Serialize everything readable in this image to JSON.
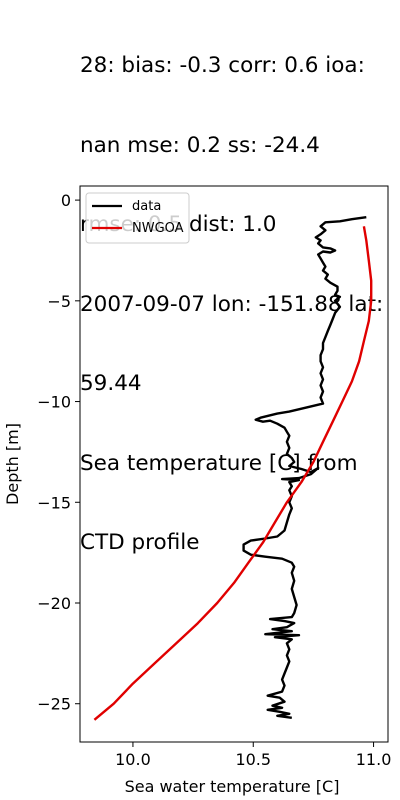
{
  "chart_data": {
    "type": "line",
    "title_lines": [
      "28: bias: -0.3  corr: 0.6  ioa:",
      "nan  mse: 0.2  ss: -24.4",
      "rmse: 0.5  dist: 1.0",
      "2007-09-07 lon: -151.88 lat:",
      "59.44",
      "Sea temperature [C] from",
      "CTD profile"
    ],
    "xlabel": "Sea water temperature [C]",
    "ylabel": "Depth [m]",
    "xlim": [
      9.78,
      11.06
    ],
    "ylim": [
      -26.9,
      0.7
    ],
    "xticks": [
      10.0,
      10.5,
      11.0
    ],
    "xtick_labels": [
      "10.0",
      "10.5",
      "11.0"
    ],
    "yticks": [
      0,
      -5,
      -10,
      -15,
      -20,
      -25
    ],
    "ytick_labels": [
      "0",
      "−5",
      "−10",
      "−15",
      "−20",
      "−25"
    ],
    "legend": {
      "position": "top-left",
      "entries": [
        "data",
        "NWGOA"
      ]
    },
    "grid": false,
    "series": [
      {
        "name": "data",
        "color": "#000000",
        "points": [
          [
            10.97,
            -0.85
          ],
          [
            10.91,
            -0.95
          ],
          [
            10.86,
            -1.05
          ],
          [
            10.8,
            -1.1
          ],
          [
            10.78,
            -1.3
          ],
          [
            10.8,
            -1.5
          ],
          [
            10.78,
            -1.7
          ],
          [
            10.76,
            -1.85
          ],
          [
            10.78,
            -2.0
          ],
          [
            10.77,
            -2.15
          ],
          [
            10.79,
            -2.35
          ],
          [
            10.82,
            -2.4
          ],
          [
            10.84,
            -2.5
          ],
          [
            10.82,
            -2.6
          ],
          [
            10.79,
            -2.55
          ],
          [
            10.77,
            -2.7
          ],
          [
            10.78,
            -2.9
          ],
          [
            10.79,
            -3.1
          ],
          [
            10.8,
            -3.3
          ],
          [
            10.79,
            -3.5
          ],
          [
            10.81,
            -3.7
          ],
          [
            10.8,
            -3.9
          ],
          [
            10.82,
            -4.1
          ],
          [
            10.85,
            -4.3
          ],
          [
            10.85,
            -4.5
          ],
          [
            10.84,
            -4.7
          ],
          [
            10.86,
            -4.8
          ],
          [
            10.84,
            -5.0
          ],
          [
            10.86,
            -5.3
          ],
          [
            10.84,
            -5.6
          ],
          [
            10.83,
            -5.9
          ],
          [
            10.82,
            -6.2
          ],
          [
            10.81,
            -6.5
          ],
          [
            10.8,
            -6.8
          ],
          [
            10.79,
            -7.1
          ],
          [
            10.79,
            -7.4
          ],
          [
            10.78,
            -7.7
          ],
          [
            10.78,
            -8.0
          ],
          [
            10.79,
            -8.3
          ],
          [
            10.78,
            -8.6
          ],
          [
            10.79,
            -8.9
          ],
          [
            10.78,
            -9.2
          ],
          [
            10.79,
            -9.5
          ],
          [
            10.78,
            -9.8
          ],
          [
            10.79,
            -10.1
          ],
          [
            10.72,
            -10.3
          ],
          [
            10.65,
            -10.5
          ],
          [
            10.6,
            -10.6
          ],
          [
            10.53,
            -10.8
          ],
          [
            10.51,
            -10.9
          ],
          [
            10.54,
            -11.0
          ],
          [
            10.57,
            -10.95
          ],
          [
            10.6,
            -11.1
          ],
          [
            10.63,
            -11.3
          ],
          [
            10.64,
            -11.5
          ],
          [
            10.65,
            -11.7
          ],
          [
            10.64,
            -12.0
          ],
          [
            10.65,
            -12.3
          ],
          [
            10.64,
            -12.6
          ],
          [
            10.66,
            -12.8
          ],
          [
            10.67,
            -13.0
          ],
          [
            10.65,
            -13.2
          ],
          [
            10.7,
            -13.35
          ],
          [
            10.74,
            -13.5
          ],
          [
            10.77,
            -13.3
          ],
          [
            10.74,
            -13.6
          ],
          [
            10.69,
            -13.8
          ],
          [
            10.62,
            -13.85
          ],
          [
            10.69,
            -13.9
          ],
          [
            10.65,
            -14.0
          ],
          [
            10.66,
            -14.2
          ],
          [
            10.65,
            -14.4
          ],
          [
            10.66,
            -14.7
          ],
          [
            10.65,
            -15.0
          ],
          [
            10.66,
            -15.3
          ],
          [
            10.65,
            -15.6
          ],
          [
            10.64,
            -16.0
          ],
          [
            10.63,
            -16.4
          ],
          [
            10.6,
            -16.7
          ],
          [
            10.55,
            -16.8
          ],
          [
            10.49,
            -16.9
          ],
          [
            10.46,
            -17.1
          ],
          [
            10.46,
            -17.4
          ],
          [
            10.49,
            -17.6
          ],
          [
            10.55,
            -17.7
          ],
          [
            10.62,
            -17.8
          ],
          [
            10.66,
            -18.0
          ],
          [
            10.67,
            -18.2
          ],
          [
            10.66,
            -18.5
          ],
          [
            10.67,
            -18.9
          ],
          [
            10.66,
            -19.3
          ],
          [
            10.67,
            -19.7
          ],
          [
            10.68,
            -20.1
          ],
          [
            10.67,
            -20.5
          ],
          [
            10.66,
            -20.7
          ],
          [
            10.57,
            -20.8
          ],
          [
            10.63,
            -20.9
          ],
          [
            10.67,
            -21.0
          ],
          [
            10.64,
            -21.2
          ],
          [
            10.58,
            -21.3
          ],
          [
            10.66,
            -21.4
          ],
          [
            10.55,
            -21.55
          ],
          [
            10.69,
            -21.6
          ],
          [
            10.59,
            -21.7
          ],
          [
            10.66,
            -21.8
          ],
          [
            10.64,
            -22.0
          ],
          [
            10.65,
            -22.3
          ],
          [
            10.64,
            -22.6
          ],
          [
            10.65,
            -22.9
          ],
          [
            10.64,
            -23.2
          ],
          [
            10.63,
            -23.5
          ],
          [
            10.62,
            -23.8
          ],
          [
            10.63,
            -24.1
          ],
          [
            10.62,
            -24.4
          ],
          [
            10.56,
            -24.6
          ],
          [
            10.61,
            -24.7
          ],
          [
            10.63,
            -24.9
          ],
          [
            10.58,
            -25.1
          ],
          [
            10.62,
            -25.2
          ],
          [
            10.56,
            -25.3
          ],
          [
            10.61,
            -25.4
          ],
          [
            10.65,
            -25.5
          ],
          [
            10.6,
            -25.6
          ],
          [
            10.66,
            -25.7
          ]
        ]
      },
      {
        "name": "NWGOA",
        "color": "#e00000",
        "points": [
          [
            10.96,
            -1.3
          ],
          [
            10.97,
            -2.0
          ],
          [
            10.98,
            -3.0
          ],
          [
            10.99,
            -4.0
          ],
          [
            10.99,
            -5.0
          ],
          [
            10.98,
            -6.0
          ],
          [
            10.96,
            -7.0
          ],
          [
            10.94,
            -8.0
          ],
          [
            10.91,
            -9.0
          ],
          [
            10.87,
            -10.0
          ],
          [
            10.83,
            -11.0
          ],
          [
            10.79,
            -12.0
          ],
          [
            10.75,
            -13.0
          ],
          [
            10.7,
            -14.0
          ],
          [
            10.64,
            -15.0
          ],
          [
            10.59,
            -16.0
          ],
          [
            10.54,
            -17.0
          ],
          [
            10.48,
            -18.0
          ],
          [
            10.42,
            -19.0
          ],
          [
            10.35,
            -20.0
          ],
          [
            10.27,
            -21.0
          ],
          [
            10.18,
            -22.0
          ],
          [
            10.09,
            -23.0
          ],
          [
            10.0,
            -24.0
          ],
          [
            9.92,
            -25.0
          ],
          [
            9.84,
            -25.8
          ]
        ]
      }
    ]
  }
}
